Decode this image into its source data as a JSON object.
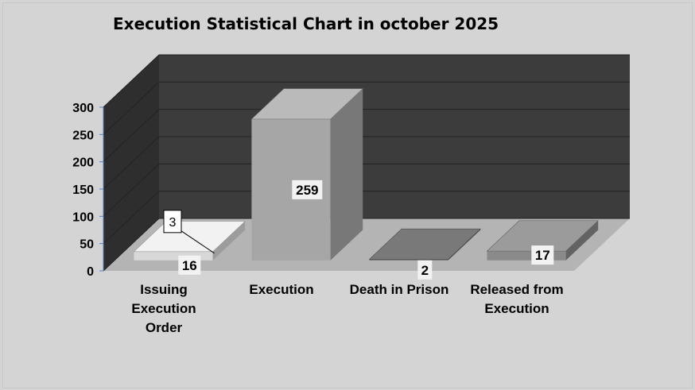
{
  "chart_data": {
    "type": "bar",
    "title": "Execution Statistical Chart in october 2025",
    "categories": [
      [
        "Issuing",
        "Execution",
        "Order"
      ],
      [
        "Execution"
      ],
      [
        "Death in Prison"
      ],
      [
        "Released from",
        "Execution"
      ]
    ],
    "values": [
      16,
      259,
      2,
      17
    ],
    "extra_labels": [
      {
        "category_index": 0,
        "text": "3",
        "value": 3
      }
    ],
    "ylim": [
      0,
      300
    ],
    "yticks": [
      "0",
      "50",
      "100",
      "150",
      "200",
      "250",
      "300"
    ],
    "grid": true,
    "legend": "none",
    "colors": {
      "background": "#d4d4d4",
      "back_wall": "#3c3c3c",
      "side_wall": "#2e2e2e",
      "floor": "#b4b4b4",
      "bar_issuing": "#d8d8d8",
      "bar_execution": "#a6a6a6",
      "bar_death": "#6c6c6c",
      "bar_released": "#8a8a8a"
    }
  }
}
